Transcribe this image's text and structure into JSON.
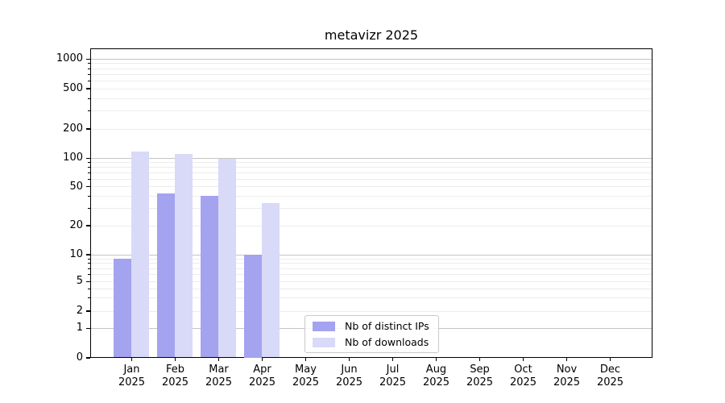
{
  "title": "metavizr 2025",
  "chart_data": {
    "type": "bar",
    "title": "metavizr 2025",
    "categories": [
      "Jan 2025",
      "Feb 2025",
      "Mar 2025",
      "Apr 2025",
      "May 2025",
      "Jun 2025",
      "Jul 2025",
      "Aug 2025",
      "Sep 2025",
      "Oct 2025",
      "Nov 2025",
      "Dec 2025"
    ],
    "series": [
      {
        "name": "Nb of distinct IPs",
        "color": "#a3a3ef",
        "values": [
          9,
          42,
          40,
          10,
          null,
          null,
          null,
          null,
          null,
          null,
          null,
          null
        ]
      },
      {
        "name": "Nb of downloads",
        "color": "#d9d9f8",
        "values": [
          116,
          110,
          97,
          34,
          null,
          null,
          null,
          null,
          null,
          null,
          null,
          null
        ]
      }
    ],
    "xlabel": "",
    "ylabel": "",
    "y_ticks": [
      0,
      1,
      2,
      5,
      10,
      20,
      50,
      100,
      200,
      500,
      1000
    ],
    "ylim": [
      0,
      1000
    ],
    "yscale": "log-with-zero",
    "grid": "horizontal major and minor gridlines",
    "legend_position": "lower center inside plot"
  },
  "colors": {
    "spine": "#000000",
    "major_grid": "#c4c4c4",
    "minor_grid": "#ececec",
    "background": "#ffffff"
  }
}
